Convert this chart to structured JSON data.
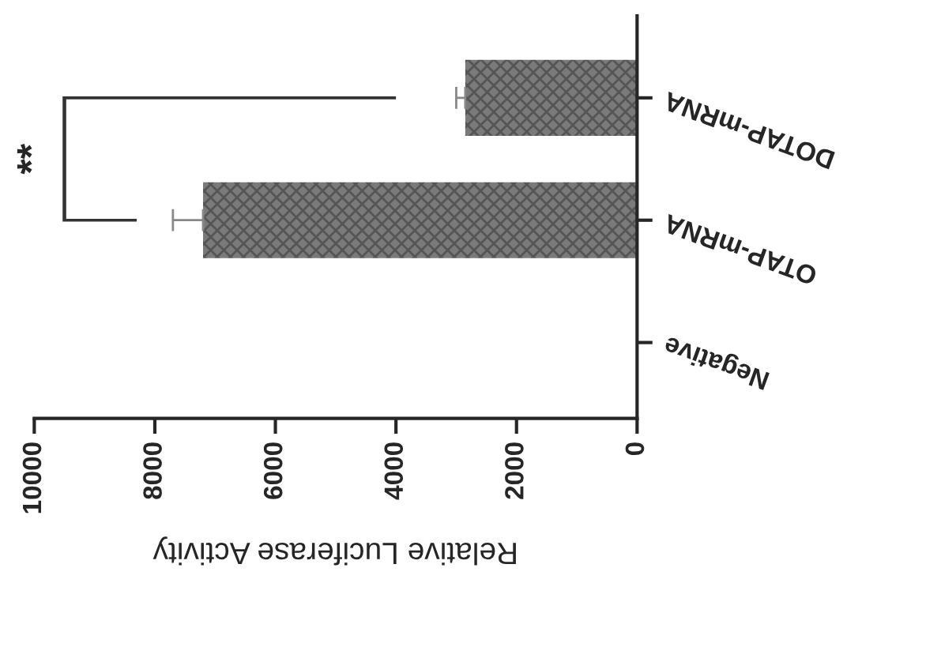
{
  "chart_data": {
    "type": "bar",
    "orientation": "horizontal",
    "categories": [
      "DOTAP-mRNA",
      "OTAP-mRNA",
      "Negative"
    ],
    "values": [
      2850,
      7200,
      0
    ],
    "errors": [
      [
        2850,
        3000
      ],
      [
        7200,
        7700
      ],
      null
    ],
    "color": "#7a7a7a",
    "xlabel": "Relative Luciferase Activity",
    "xlim": [
      10000,
      0
    ],
    "xticks": [
      10000,
      8000,
      6000,
      4000,
      2000,
      0
    ],
    "annotations": [
      "**"
    ],
    "grid": false
  }
}
